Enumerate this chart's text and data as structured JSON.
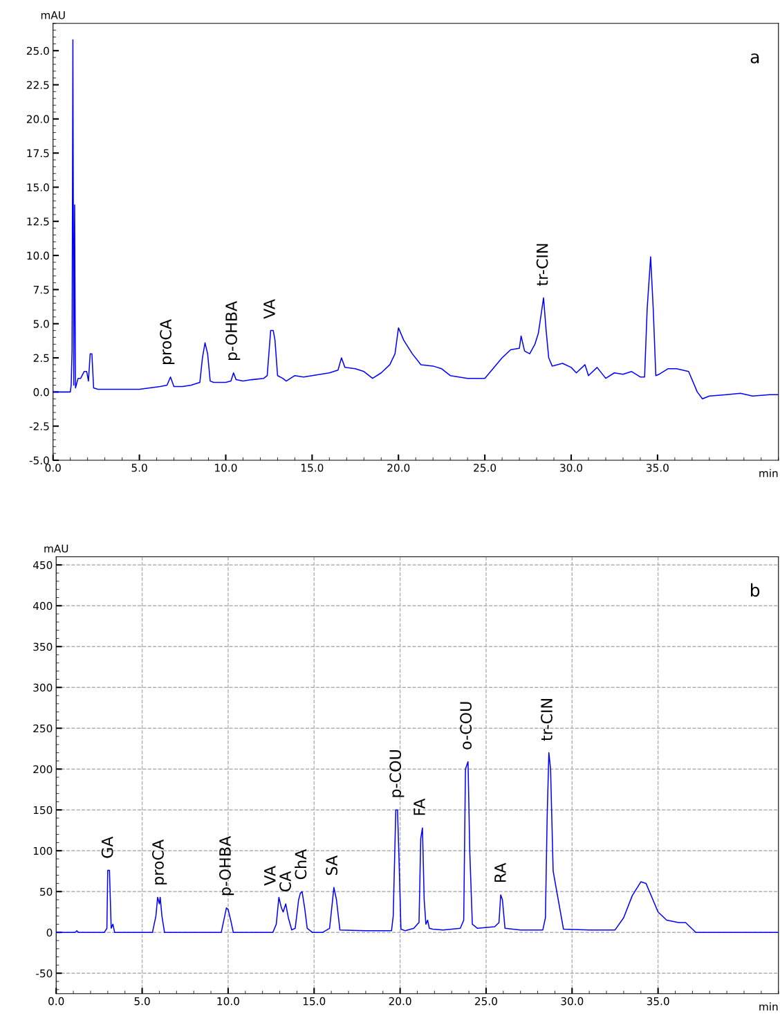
{
  "chart_data": [
    {
      "type": "line",
      "xlabel": "min",
      "ylabel": "mAU",
      "grid": false,
      "marker": "none",
      "line_style": "solid",
      "xlim": [
        0,
        42
      ],
      "ylim": [
        -5,
        27
      ],
      "xticks": [
        {
          "value": 0,
          "label": "0.0"
        },
        {
          "value": 5,
          "label": "5.0"
        },
        {
          "value": 10,
          "label": "10.0"
        },
        {
          "value": 15,
          "label": "15.0"
        },
        {
          "value": 20,
          "label": "20.0"
        },
        {
          "value": 25,
          "label": "25.0"
        },
        {
          "value": 30,
          "label": "30.0"
        },
        {
          "value": 35,
          "label": "35.0"
        }
      ],
      "yticks": [
        {
          "value": -5,
          "label": "-5.0"
        },
        {
          "value": -2.5,
          "label": "-2.5"
        },
        {
          "value": 0,
          "label": "0.0"
        },
        {
          "value": 2.5,
          "label": "2.5"
        },
        {
          "value": 5,
          "label": "5.0"
        },
        {
          "value": 7.5,
          "label": "7.5"
        },
        {
          "value": 10,
          "label": "10.0"
        },
        {
          "value": 12.5,
          "label": "12.5"
        },
        {
          "value": 15,
          "label": "15.0"
        },
        {
          "value": 17.5,
          "label": "17.5"
        },
        {
          "value": 20,
          "label": "20.0"
        },
        {
          "value": 22.5,
          "label": "22.5"
        },
        {
          "value": 25,
          "label": "25.0"
        }
      ],
      "annotations": [
        "a",
        {
          "text": "proCA",
          "x": 6.6,
          "y": 1.1
        },
        {
          "text": "p-OHBA",
          "x": 10.4,
          "y": 1.4
        },
        {
          "text": "VA",
          "x": 12.6,
          "y": 4.5
        },
        {
          "text": "tr-CIN",
          "x": 28.4,
          "y": 6.9
        }
      ],
      "series": [
        {
          "color": "#0000ff",
          "x": [
            0,
            1.0,
            1.05,
            1.1,
            1.15,
            1.2,
            1.25,
            1.3,
            1.45,
            1.6,
            1.8,
            1.95,
            2.05,
            2.15,
            2.25,
            2.35,
            2.6,
            5,
            6.2,
            6.6,
            6.8,
            7.0,
            7.5,
            8.0,
            8.5,
            8.65,
            8.8,
            8.95,
            9.1,
            9.3,
            10,
            10.3,
            10.45,
            10.6,
            11,
            11.5,
            12.2,
            12.4,
            12.6,
            12.75,
            12.85,
            13.0,
            13.3,
            13.5,
            14,
            14.5,
            15,
            15.5,
            16,
            16.5,
            16.7,
            16.9,
            17.5,
            18,
            18.5,
            19,
            19.5,
            19.8,
            20.0,
            20.3,
            20.8,
            21.3,
            22,
            22.5,
            23,
            24,
            25,
            26,
            26.5,
            27.0,
            27.1,
            27.3,
            27.6,
            27.9,
            28.1,
            28.4,
            28.55,
            28.7,
            28.9,
            29.5,
            30,
            30.3,
            30.8,
            31,
            31.5,
            32,
            32.5,
            33,
            33.5,
            34,
            34.25,
            34.4,
            34.6,
            34.75,
            34.9,
            35.1,
            35.6,
            36.1,
            36.8,
            37.3,
            37.6,
            38,
            39,
            39.8,
            40.5,
            41.5,
            42
          ],
          "values": [
            0,
            0,
            0.5,
            3.0,
            25.8,
            0.5,
            13.7,
            0.3,
            1.0,
            1.0,
            1.5,
            1.5,
            0.8,
            2.8,
            2.8,
            0.3,
            0.2,
            0.2,
            0.4,
            0.5,
            1.1,
            0.4,
            0.4,
            0.5,
            0.7,
            2.5,
            3.6,
            2.8,
            0.8,
            0.7,
            0.7,
            0.8,
            1.4,
            0.9,
            0.8,
            0.9,
            1.0,
            1.2,
            4.5,
            4.5,
            3.8,
            1.2,
            1.0,
            0.8,
            1.2,
            1.1,
            1.2,
            1.3,
            1.4,
            1.6,
            2.5,
            1.8,
            1.7,
            1.5,
            1.0,
            1.4,
            2.0,
            2.8,
            4.7,
            3.8,
            2.8,
            2.0,
            1.9,
            1.7,
            1.2,
            1.0,
            1.0,
            2.5,
            3.1,
            3.2,
            4.1,
            3.0,
            2.8,
            3.5,
            4.3,
            6.9,
            4.5,
            2.5,
            1.9,
            2.1,
            1.8,
            1.4,
            2.0,
            1.2,
            1.8,
            1.0,
            1.4,
            1.3,
            1.5,
            1.1,
            1.1,
            6.1,
            9.9,
            6.1,
            1.2,
            1.3,
            1.7,
            1.7,
            1.5,
            0.0,
            -0.5,
            -0.3,
            -0.2,
            -0.1,
            -0.3,
            -0.2,
            -0.2
          ]
        }
      ]
    },
    {
      "type": "line",
      "xlabel": "min",
      "ylabel": "mAU",
      "grid": true,
      "marker": "none",
      "line_style": "solid",
      "xlim": [
        0,
        42
      ],
      "ylim": [
        -75,
        460
      ],
      "xticks": [
        {
          "value": 0,
          "label": "0.0"
        },
        {
          "value": 5,
          "label": "5.0"
        },
        {
          "value": 10,
          "label": "10.0"
        },
        {
          "value": 15,
          "label": "15.0"
        },
        {
          "value": 20,
          "label": "20.0"
        },
        {
          "value": 25,
          "label": "25.0"
        },
        {
          "value": 30,
          "label": "30.0"
        },
        {
          "value": 35,
          "label": "35.0"
        }
      ],
      "yticks": [
        -50,
        0,
        50,
        100,
        150,
        200,
        250,
        300,
        350,
        400,
        450
      ],
      "annotations": [
        "b",
        {
          "text": "GA",
          "x": 3.05,
          "y": 76
        },
        {
          "text": "proCA",
          "x": 6.0,
          "y": 43
        },
        {
          "text": "p-OHBA",
          "x": 9.9,
          "y": 30
        },
        {
          "text": "VA",
          "x": 12.95,
          "y": 43
        },
        {
          "text": "CA",
          "x": 13.4,
          "y": 35
        },
        {
          "text": "ChA",
          "x": 14.3,
          "y": 50
        },
        {
          "text": "SA",
          "x": 16.1,
          "y": 55
        },
        {
          "text": "p-COU",
          "x": 19.8,
          "y": 150
        },
        {
          "text": "FA",
          "x": 21.2,
          "y": 128
        },
        {
          "text": "o-COU",
          "x": 23.9,
          "y": 209
        },
        {
          "text": "RA",
          "x": 25.9,
          "y": 46
        },
        {
          "text": "tr-CIN",
          "x": 28.6,
          "y": 220
        }
      ],
      "series": [
        {
          "color": "#0000ff",
          "x": [
            0,
            1.1,
            1.2,
            1.3,
            2.8,
            2.95,
            3.0,
            3.1,
            3.2,
            3.3,
            3.4,
            5.6,
            5.8,
            5.9,
            6.0,
            6.05,
            6.15,
            6.3,
            9.6,
            9.8,
            9.9,
            10.0,
            10.15,
            10.3,
            12.6,
            12.8,
            12.95,
            13.1,
            13.2,
            13.35,
            13.5,
            13.7,
            13.9,
            14.1,
            14.2,
            14.3,
            14.45,
            14.6,
            14.9,
            15.5,
            15.9,
            16.0,
            16.15,
            16.3,
            16.5,
            18.0,
            19.5,
            19.6,
            19.75,
            19.85,
            19.95,
            20.05,
            20.3,
            20.8,
            21.0,
            21.1,
            21.2,
            21.3,
            21.4,
            21.5,
            21.6,
            21.7,
            21.9,
            22.5,
            23.5,
            23.7,
            23.8,
            23.95,
            24.05,
            24.2,
            24.5,
            25.5,
            25.75,
            25.85,
            25.95,
            26.1,
            27.0,
            28.3,
            28.45,
            28.55,
            28.65,
            28.75,
            28.9,
            29.5,
            31.0,
            32.5,
            33.0,
            33.5,
            34.0,
            34.3,
            34.7,
            35.0,
            35.5,
            36.2,
            36.6,
            37.2,
            42
          ],
          "values": [
            0,
            0,
            2,
            0,
            0,
            5,
            76,
            76,
            5,
            10,
            0,
            0,
            20,
            43,
            35,
            43,
            20,
            0,
            0,
            20,
            30,
            28,
            15,
            0,
            0,
            10,
            43,
            30,
            25,
            35,
            18,
            3,
            5,
            40,
            48,
            50,
            30,
            5,
            0,
            0,
            5,
            25,
            55,
            40,
            3,
            2,
            2,
            20,
            150,
            150,
            80,
            4,
            2,
            5,
            10,
            12,
            115,
            128,
            40,
            10,
            15,
            5,
            4,
            3,
            5,
            15,
            200,
            209,
            100,
            10,
            5,
            7,
            12,
            46,
            40,
            5,
            3,
            3,
            18,
            140,
            220,
            200,
            75,
            4,
            3,
            3,
            18,
            45,
            62,
            60,
            40,
            25,
            15,
            12,
            12,
            0,
            0
          ]
        }
      ]
    }
  ]
}
